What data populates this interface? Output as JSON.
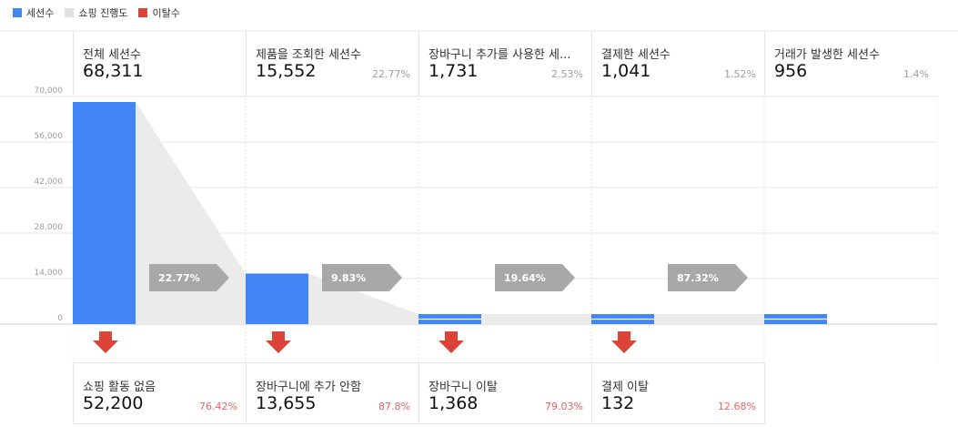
{
  "legend": [
    {
      "label": "세션수",
      "color": "#4285f4"
    },
    {
      "label": "쇼핑 진행도",
      "color": "#e0e0e0"
    },
    {
      "label": "이탈수",
      "color": "#db4437"
    }
  ],
  "stages": [
    {
      "title": "전체 세션수",
      "value": "68,311",
      "pct": ""
    },
    {
      "title": "제품을 조회한 세션수",
      "value": "15,552",
      "pct": "22.77%"
    },
    {
      "title": "장바구니 추가를 사용한 세...",
      "value": "1,731",
      "pct": "2.53%"
    },
    {
      "title": "결제한 세션수",
      "value": "1,041",
      "pct": "1.52%"
    },
    {
      "title": "거래가 발생한 세션수",
      "value": "956",
      "pct": "1.4%"
    }
  ],
  "drops": [
    {
      "title": "쇼핑 활동 없음",
      "value": "52,200",
      "pct": "76.42%"
    },
    {
      "title": "장바구니에 추가 안함",
      "value": "13,655",
      "pct": "87.8%"
    },
    {
      "title": "장바구니 이탈",
      "value": "1,368",
      "pct": "79.03%"
    },
    {
      "title": "결제 이탈",
      "value": "132",
      "pct": "12.68%"
    }
  ],
  "chart_data": {
    "type": "bar",
    "series": [
      {
        "name": "세션수",
        "values": [
          68311,
          15552,
          1731,
          1041,
          956
        ]
      }
    ],
    "conversion_rates": [
      "22.77%",
      "9.83%",
      "19.64%",
      "87.32%"
    ],
    "ylim": [
      0,
      70000
    ],
    "yticks": [
      "70,000",
      "56,000",
      "42,000",
      "28,000",
      "14,000",
      "0"
    ],
    "ytick_values": [
      70000,
      56000,
      42000,
      28000,
      14000,
      0
    ],
    "grid": true,
    "legend_position": "top-left"
  }
}
